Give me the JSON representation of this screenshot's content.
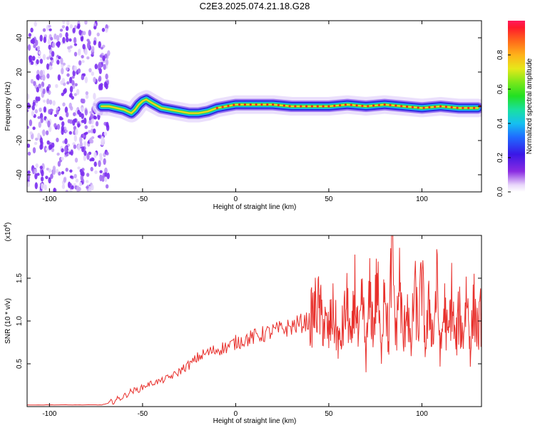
{
  "figure_title": "C2E3.2025.074.21.18.G28",
  "chart_data": [
    {
      "type": "heatmap",
      "title": "C2E3.2025.074.21.18.G28",
      "xlabel": "Height of straight line (km)",
      "ylabel": "Frequency (Hz)",
      "xlim": [
        -112,
        132
      ],
      "ylim": [
        -50,
        50
      ],
      "xticks": [
        -100,
        -50,
        0,
        50,
        100
      ],
      "yticks": [
        -40,
        -20,
        0,
        20,
        40
      ],
      "colorbar": {
        "label": "Normalized spectral amplitude",
        "range": [
          0,
          1
        ],
        "ticks": [
          "0.0",
          "0.2",
          "0.4",
          "0.6",
          "0.8"
        ],
        "tick_values": [
          0.0,
          0.2,
          0.4,
          0.6,
          0.8
        ],
        "colormap": "rainbow (violet to red)"
      },
      "ridge": {
        "x": [
          -72,
          -68,
          -64,
          -60,
          -58,
          -56,
          -54,
          -52,
          -50,
          -48,
          -45,
          -40,
          -35,
          -30,
          -25,
          -20,
          -15,
          -10,
          -5,
          0,
          10,
          20,
          30,
          40,
          50,
          60,
          70,
          80,
          90,
          100,
          110,
          120,
          130
        ],
        "y": [
          0,
          0,
          -1,
          -2,
          -3,
          -4,
          -2,
          1,
          3,
          4,
          2,
          -1,
          -2,
          -3,
          -4,
          -4,
          -3,
          -1,
          0,
          1,
          1,
          1,
          0,
          0,
          0,
          1,
          0,
          1,
          0,
          -1,
          0,
          -1,
          -1
        ]
      },
      "noise_region": {
        "x_range": [
          -112,
          -68
        ],
        "y_range": [
          -50,
          50
        ]
      }
    },
    {
      "type": "line",
      "title": "",
      "xlabel": "Height of straight line (km)",
      "ylabel": "SNR (10 * v/v)",
      "y_scale_label": "(x10",
      "y_scale_exponent": "4",
      "y_scale_suffix": ")",
      "xlim": [
        -112,
        132
      ],
      "ylim": [
        0,
        2.0
      ],
      "xticks": [
        -100,
        -50,
        0,
        50,
        100
      ],
      "yticks": [
        0.5,
        1.0,
        1.5
      ],
      "ytick_labels": [
        "0.5",
        "1.0",
        "1.5"
      ],
      "color": "#e8302c",
      "series": [
        {
          "x": [
            -112,
            -100,
            -90,
            -80,
            -72,
            -68,
            -64,
            -60,
            -56,
            -52,
            -48,
            -44,
            -40,
            -36,
            -32,
            -28,
            -24,
            -20,
            -16,
            -12,
            -8,
            -4,
            0,
            4,
            8,
            12,
            16,
            20,
            24,
            28,
            32,
            36,
            40,
            42,
            44,
            46,
            48,
            50,
            52,
            54,
            56,
            58,
            60,
            62,
            64,
            66,
            68,
            70,
            72,
            74,
            76,
            78,
            80,
            82,
            84,
            86,
            88,
            90,
            92,
            94,
            96,
            98,
            100,
            102,
            104,
            106,
            108,
            110,
            112,
            114,
            116,
            118,
            120,
            122,
            124,
            126,
            128,
            130,
            132
          ],
          "values": [
            0.02,
            0.02,
            0.02,
            0.02,
            0.02,
            0.04,
            0.08,
            0.12,
            0.18,
            0.2,
            0.25,
            0.28,
            0.3,
            0.34,
            0.38,
            0.45,
            0.5,
            0.58,
            0.62,
            0.65,
            0.68,
            0.7,
            0.75,
            0.78,
            0.8,
            0.83,
            0.85,
            0.88,
            0.9,
            0.92,
            0.95,
            0.98,
            1.0,
            1.1,
            1.2,
            1.05,
            0.95,
            0.85,
            1.1,
            0.9,
            0.7,
            1.0,
            1.2,
            0.65,
            1.4,
            0.7,
            1.25,
            0.6,
            1.3,
            0.9,
            1.5,
            0.6,
            1.6,
            0.7,
            1.9,
            0.8,
            1.5,
            0.7,
            1.3,
            0.6,
            1.4,
            0.9,
            1.5,
            0.7,
            1.2,
            0.8,
            1.45,
            0.6,
            1.2,
            0.75,
            1.3,
            0.7,
            1.1,
            0.8,
            1.35,
            0.7,
            1.2,
            0.85,
            1.1
          ]
        }
      ]
    }
  ]
}
